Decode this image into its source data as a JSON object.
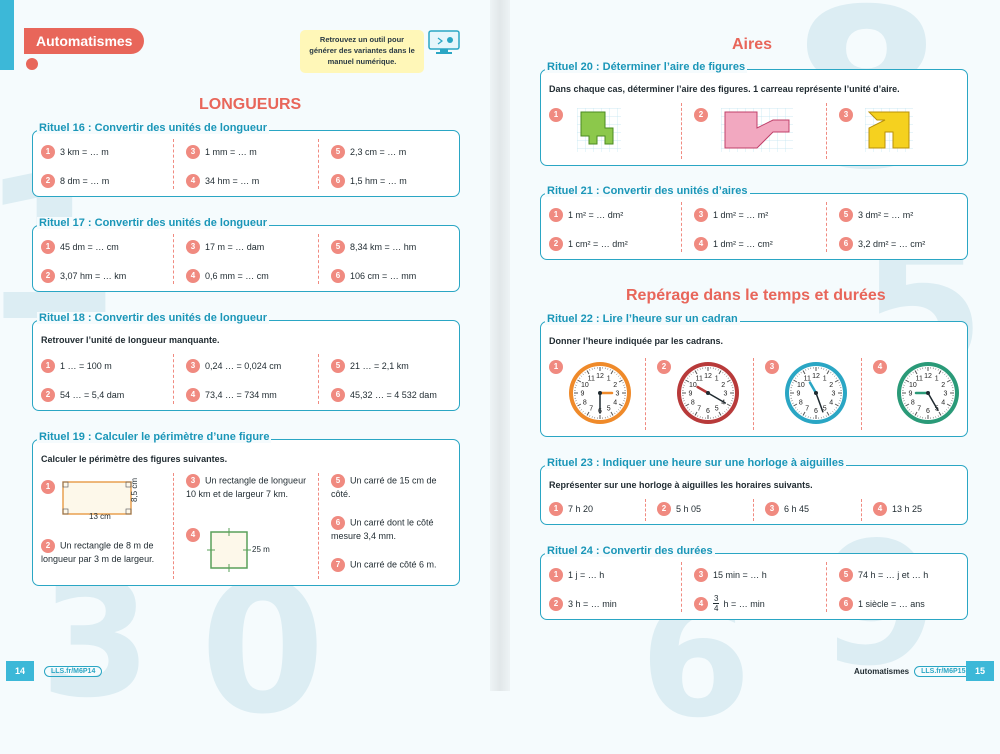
{
  "header": {
    "badge": "Automatismes",
    "note": "Retrouvez un outil pour générer des variantes dans le manuel numérique."
  },
  "sections": {
    "longueurs": "LONGUEURS",
    "aires": "Aires",
    "temps": "Repérage dans le temps et durées"
  },
  "r16": {
    "title": "Rituel 16 : Convertir des unités de longueur",
    "items": [
      "3 km = … m",
      "8 dm = … m",
      "1 mm = … m",
      "34 hm = … m",
      "2,3 cm = … m",
      "1,5 hm = … m"
    ]
  },
  "r17": {
    "title": "Rituel 17 : Convertir des unités de longueur",
    "items": [
      "45 dm = … cm",
      "3,07 hm = … km",
      "17 m = … dam",
      "0,6 mm = … cm",
      "8,34 km = … hm",
      "106 cm = … mm"
    ]
  },
  "r18": {
    "title": "Rituel 18 : Convertir des unités de longueur",
    "instruction": "Retrouver l’unité de longueur manquante.",
    "items": [
      "1 … = 100 m",
      "54 … = 5,4 dam",
      "0,24 … = 0,024 cm",
      "73,4 … = 734 mm",
      "21 … = 2,1 km",
      "45,32 … = 4 532 dam"
    ]
  },
  "r19": {
    "title": "Rituel 19 : Calculer le périmètre d’une figure",
    "instruction": "Calculer le périmètre des figures suivantes.",
    "fig1_w": "13 cm",
    "fig1_h": "8,5 cm",
    "fig4_side": "25 m",
    "item2": "Un rectangle de 8 m de longueur par 3 m de largeur.",
    "item3": "Un rectangle de longueur 10 km et de largeur 7 km.",
    "item5": "Un carré de 15 cm de côté.",
    "item6": "Un carré dont le côté mesure 3,4 mm.",
    "item7": "Un carré de côté 6 m."
  },
  "r20": {
    "title": "Rituel 20 : Déterminer l’aire de figures",
    "instruction": "Dans chaque cas, déterminer l’aire des figures. 1 carreau représente l’unité d’aire."
  },
  "r21": {
    "title": "Rituel 21 : Convertir des unités d’aires",
    "items": [
      "1 m² = … dm²",
      "1 cm² = … dm²",
      "1 dm² = … m²",
      "1 dm² = … cm²",
      "3 dm² = … m²",
      "3,2 dm² = … cm²"
    ]
  },
  "r22": {
    "title": "Rituel 22 : Lire l’heure sur un cadran",
    "instruction": "Donner l’heure indiquée par les cadrans."
  },
  "r23": {
    "title": "Rituel 23 : Indiquer une heure sur une horloge à aiguilles",
    "instruction": "Représenter sur une horloge à aiguilles les horaires suivants.",
    "items": [
      "7 h 20",
      "5 h 05",
      "6 h 45",
      "13 h 25"
    ]
  },
  "r24": {
    "title": "Rituel 24 : Convertir des durées",
    "items": [
      "1 j = … h",
      "3 h = … min",
      "15 min = … h",
      "h = … min",
      "74 h = … j et … h",
      "1 siècle = … ans"
    ],
    "frac_num": "3",
    "frac_den": "4"
  },
  "footer": {
    "left_page": "14",
    "left_link": "LLS.fr/M6P14",
    "right_label": "Automatismes",
    "right_link": "LLS.fr/M6P15",
    "right_page": "15"
  },
  "colors": {
    "accent": "#e8665a",
    "teal": "#2aa6c4",
    "badge": "#f08a80"
  }
}
